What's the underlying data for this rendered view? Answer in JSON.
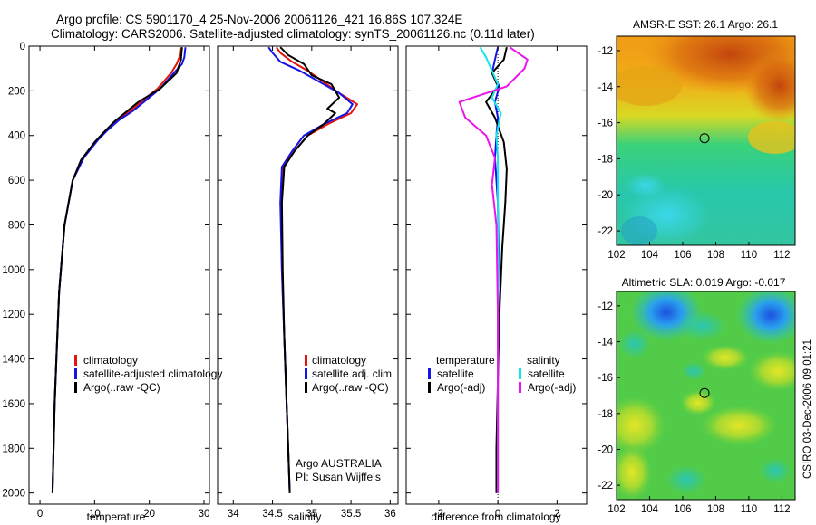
{
  "figure": {
    "title_line1": "Argo profile: CS 5901170_4 25-Nov-2006 20061126_421 16.86S 107.324E",
    "title_line2": "Climatology: CARS2006. Satellite-adjusted climatology: synTS_20061126.nc (0.11d later)",
    "side_label": "CSIRO 03-Dec-2006 09:01:21",
    "colors": {
      "climatology": "#e4140c",
      "satellite": "#1414e6",
      "argo": "#000000",
      "sal_satellite": "#14e4ec",
      "sal_argo": "#ec14ec"
    }
  },
  "chart_data": [
    {
      "id": "temperature",
      "type": "line",
      "xlabel": "temperature",
      "ylabel": "",
      "xlim": [
        -2,
        31
      ],
      "ylim": [
        2050,
        0
      ],
      "y_inverted": true,
      "xticks": [
        0,
        10,
        20,
        30
      ],
      "yticks": [
        0,
        200,
        400,
        600,
        800,
        1000,
        1200,
        1400,
        1600,
        1800,
        2000
      ],
      "legend": [
        "climatology",
        "satellite-adjusted climatology",
        "Argo(..raw -QC)"
      ],
      "series": [
        {
          "name": "climatology",
          "color": "#e4140c",
          "x": [
            25.7,
            25.5,
            25.0,
            24.0,
            21.5,
            19.0,
            16.5,
            14.0,
            12.0,
            10.5,
            8.0,
            6.0,
            4.5,
            3.5,
            3.0,
            2.7,
            2.4,
            2.3
          ],
          "y": [
            5,
            50,
            80,
            120,
            190,
            240,
            290,
            330,
            380,
            420,
            500,
            600,
            800,
            1100,
            1400,
            1600,
            1900,
            2000
          ]
        },
        {
          "name": "satellite-adjusted climatology",
          "color": "#1414e6",
          "x": [
            26.6,
            26.4,
            26.0,
            24.5,
            22.0,
            19.5,
            17.0,
            14.5,
            12.2,
            10.6,
            8.0,
            6.0,
            4.5,
            3.5,
            3.0,
            2.7,
            2.4,
            2.3
          ],
          "y": [
            5,
            50,
            80,
            120,
            190,
            240,
            290,
            330,
            380,
            420,
            500,
            600,
            800,
            1100,
            1400,
            1600,
            1900,
            2000
          ]
        },
        {
          "name": "Argo(..raw -QC)",
          "color": "#000000",
          "x": [
            26.0,
            25.9,
            25.8,
            25.0,
            22.0,
            18.0,
            15.5,
            13.5,
            11.5,
            10.0,
            7.5,
            6.0,
            4.5,
            3.5,
            3.0,
            2.7,
            2.4,
            2.3
          ],
          "y": [
            5,
            30,
            60,
            120,
            190,
            250,
            300,
            340,
            390,
            430,
            510,
            600,
            800,
            1100,
            1400,
            1600,
            1900,
            2000
          ]
        }
      ]
    },
    {
      "id": "salinity",
      "type": "line",
      "xlabel": "salinity",
      "ylabel": "",
      "xlim": [
        33.8,
        36.1
      ],
      "ylim": [
        2050,
        0
      ],
      "y_inverted": true,
      "xticks": [
        34,
        34.5,
        35,
        35.5,
        36
      ],
      "yticks": [],
      "legend": [
        "climatology",
        "satellite adj. clim.",
        "Argo(..raw -QC)"
      ],
      "annotation": [
        "Argo AUSTRALIA",
        "PI: Susan Wijffels"
      ],
      "series": [
        {
          "name": "climatology",
          "color": "#e4140c",
          "x": [
            34.55,
            34.6,
            34.75,
            34.95,
            35.15,
            35.35,
            35.58,
            35.5,
            35.2,
            34.95,
            34.78,
            34.63,
            34.61,
            34.62,
            34.65,
            34.68,
            34.7,
            34.72
          ],
          "y": [
            5,
            30,
            70,
            110,
            160,
            210,
            260,
            300,
            350,
            400,
            470,
            540,
            700,
            1000,
            1300,
            1600,
            1800,
            2000
          ]
        },
        {
          "name": "satellite adj. clim.",
          "color": "#1414e6",
          "x": [
            34.45,
            34.5,
            34.6,
            34.85,
            35.1,
            35.35,
            35.52,
            35.45,
            35.15,
            34.9,
            34.75,
            34.62,
            34.6,
            34.62,
            34.65,
            34.68,
            34.7,
            34.72
          ],
          "y": [
            5,
            30,
            70,
            110,
            160,
            210,
            260,
            300,
            350,
            400,
            470,
            540,
            700,
            1000,
            1300,
            1600,
            1800,
            2000
          ]
        },
        {
          "name": "Argo(..raw -QC)",
          "color": "#000000",
          "x": [
            34.6,
            34.7,
            34.9,
            35.0,
            35.25,
            35.35,
            35.2,
            35.3,
            35.15,
            34.95,
            34.78,
            34.65,
            34.62,
            34.63,
            34.65,
            34.68,
            34.7,
            34.72
          ],
          "y": [
            5,
            40,
            80,
            130,
            170,
            230,
            280,
            300,
            350,
            400,
            470,
            540,
            700,
            1000,
            1300,
            1600,
            1800,
            2000
          ]
        }
      ]
    },
    {
      "id": "difference",
      "type": "line",
      "xlabel": "difference from climatology",
      "ylabel": "",
      "xlim": [
        -3.1,
        3.0
      ],
      "ylim": [
        2050,
        0
      ],
      "y_inverted": true,
      "xticks": [
        -2,
        0,
        2
      ],
      "yticks": [],
      "legend_left_title": "temperature",
      "legend_right_title": "salinity",
      "legend_left": [
        "satellite",
        "Argo(-adj)"
      ],
      "legend_right": [
        "satellite",
        "Argo(-adj)"
      ],
      "series": [
        {
          "name": "temperature satellite",
          "color": "#1414e6",
          "x": [
            0.0,
            -0.1,
            -0.2,
            0.05,
            -0.1,
            0.0,
            -0.05,
            -0.1,
            0.0,
            0.02,
            0.0,
            0.0,
            0.0,
            0.0
          ],
          "y": [
            5,
            60,
            120,
            180,
            250,
            320,
            400,
            500,
            700,
            900,
            1200,
            1500,
            1800,
            2000
          ]
        },
        {
          "name": "temperature Argo(-adj)",
          "color": "#000000",
          "x": [
            0.3,
            0.2,
            -0.2,
            0.0,
            -0.4,
            -0.1,
            0.2,
            0.3,
            0.25,
            0.15,
            0.05,
            0.0,
            -0.05,
            -0.05
          ],
          "y": [
            5,
            60,
            120,
            180,
            250,
            320,
            430,
            550,
            700,
            900,
            1200,
            1500,
            1800,
            2000
          ]
        },
        {
          "name": "salinity satellite",
          "color": "#14e4ec",
          "x": [
            -0.6,
            -0.4,
            -0.2,
            0.0,
            -0.2,
            0.1,
            -0.05,
            0.0,
            0.0,
            0.0,
            0.0,
            0.0,
            0.0,
            0.0
          ],
          "y": [
            5,
            50,
            110,
            170,
            230,
            300,
            400,
            500,
            700,
            900,
            1200,
            1500,
            1800,
            2000
          ]
        },
        {
          "name": "salinity Argo(-adj)",
          "color": "#ec14ec",
          "x": [
            0.4,
            1.0,
            0.9,
            0.3,
            -1.3,
            -1.1,
            -0.4,
            -0.1,
            -0.2,
            -0.05,
            0.0,
            0.0,
            0.0,
            0.0
          ],
          "y": [
            5,
            60,
            100,
            180,
            250,
            320,
            400,
            500,
            620,
            800,
            1200,
            1500,
            1800,
            2000
          ]
        }
      ]
    },
    {
      "id": "sst-map",
      "type": "heatmap",
      "title": "AMSR-E SST: 26.1  Argo: 26.1",
      "xlim": [
        102,
        112.8
      ],
      "ylim": [
        -22.8,
        -11.2
      ],
      "xticks": [
        102,
        104,
        106,
        108,
        110,
        112
      ],
      "yticks": [
        -12,
        -14,
        -16,
        -18,
        -20,
        -22
      ],
      "marker": {
        "lon": 107.32,
        "lat": -16.86
      }
    },
    {
      "id": "sla-map",
      "type": "heatmap",
      "title": "Altimetric SLA: 0.019  Argo: -0.017",
      "xlim": [
        102,
        112.8
      ],
      "ylim": [
        -22.8,
        -11.2
      ],
      "xticks": [
        102,
        104,
        106,
        108,
        110,
        112
      ],
      "yticks": [
        -12,
        -14,
        -16,
        -18,
        -20,
        -22
      ],
      "marker": {
        "lon": 107.32,
        "lat": -16.86
      }
    }
  ]
}
